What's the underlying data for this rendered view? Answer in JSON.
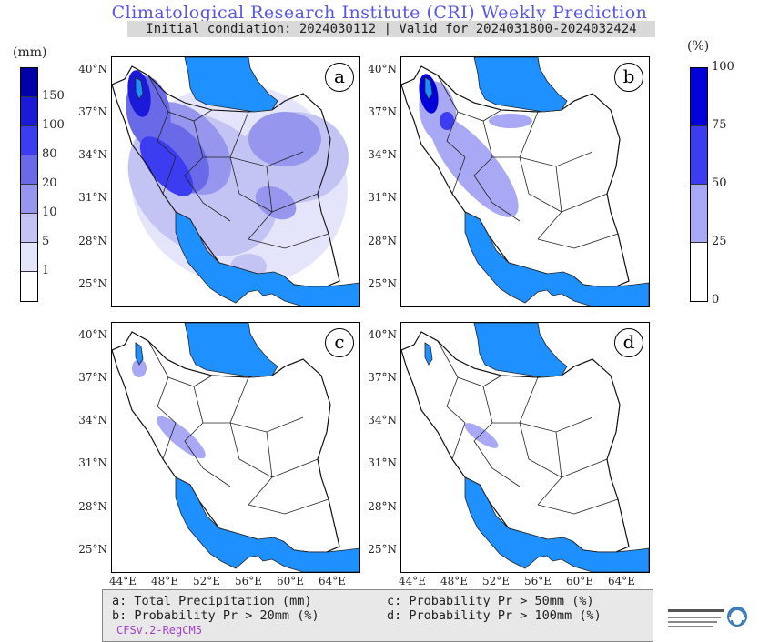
{
  "title": "Climatological Research Institute (CRI) Weekly Prediction",
  "subtitle": "Initial condiation: 2024030112 | Valid for 2024031800-2024032424",
  "left_colorbar": {
    "unit": "(mm)",
    "levels": [
      "150",
      "100",
      "80",
      "20",
      "10",
      "5",
      "1"
    ],
    "colors": [
      "#0000a8",
      "#1a1ad8",
      "#3c3cf0",
      "#6a6ae8",
      "#9696ee",
      "#c4c4f4",
      "#e4e4fa",
      "#ffffff"
    ]
  },
  "right_colorbar": {
    "unit": "(%)",
    "levels": [
      "100",
      "75",
      "50",
      "25",
      "0"
    ],
    "colors": [
      "#0000d8",
      "#3c3cf0",
      "#a8a8f4",
      "#ffffff"
    ]
  },
  "panels": [
    {
      "label": "a"
    },
    {
      "label": "b"
    },
    {
      "label": "c"
    },
    {
      "label": "d"
    }
  ],
  "lat_labels": [
    "40°N",
    "37°N",
    "34°N",
    "31°N",
    "28°N",
    "25°N"
  ],
  "lon_labels": [
    "44°E",
    "48°E",
    "52°E",
    "56°E",
    "60°E",
    "64°E"
  ],
  "legend": {
    "a": "a: Total Precipitation (mm)",
    "b": "b: Probability Pr > 20mm (%)",
    "c": "c: Probability Pr > 50mm (%)",
    "d": "d: Probability Pr > 100mm (%)",
    "model": "CFSv.2-RegCM5"
  },
  "colors": {
    "water": "#1e90ff",
    "title": "#5656e8",
    "model": "#a040c8"
  }
}
